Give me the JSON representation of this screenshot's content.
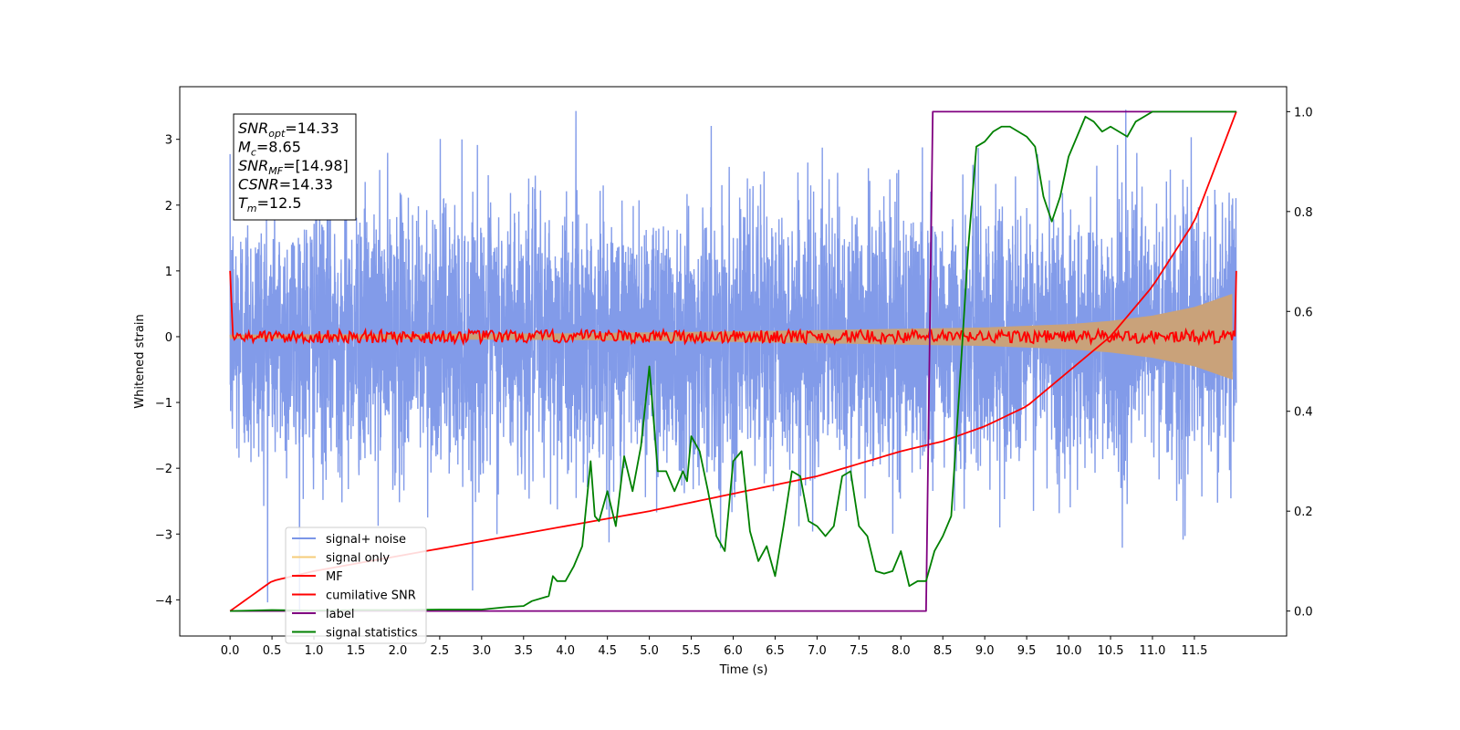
{
  "chart_data": {
    "type": "line",
    "xlabel": "Time (s)",
    "ylabel": "Whitened strain",
    "xlim": [
      -0.6,
      12.6
    ],
    "ylim": [
      -4.55,
      3.8
    ],
    "ylim_right": [
      -0.05,
      1.05
    ],
    "x_ticks": [
      "0.0",
      "0.5",
      "1.0",
      "1.5",
      "2.0",
      "2.5",
      "3.0",
      "3.5",
      "4.0",
      "4.5",
      "5.0",
      "5.5",
      "6.0",
      "6.5",
      "7.0",
      "7.5",
      "8.0",
      "8.5",
      "9.0",
      "9.5",
      "10.0",
      "10.5",
      "11.0",
      "11.5"
    ],
    "y_ticks": [
      "3",
      "2",
      "1",
      "0",
      "−1",
      "−2",
      "−3",
      "−4"
    ],
    "y_ticks_right": [
      "1.0",
      "0.8",
      "0.6",
      "0.4",
      "0.2",
      "0.0"
    ],
    "annotation_lines": [
      {
        "main": "SNR",
        "sub": "opt",
        "value": "=14.33"
      },
      {
        "main": "M",
        "sub": "c",
        "value": "=8.65"
      },
      {
        "main": "SNR",
        "sub": "MF",
        "value": "=[14.98]"
      },
      {
        "main": "CSNR",
        "sub": "",
        "value": "=14.33"
      },
      {
        "main": "T",
        "sub": "m",
        "value": "=12.5"
      }
    ],
    "legend": {
      "placement": "lower-left",
      "entries": [
        {
          "label": "signal+ noise",
          "color": "#7b96e8"
        },
        {
          "label": "signal only",
          "color": "#f5cc7a"
        },
        {
          "label": "MF",
          "color": "#ff0000"
        },
        {
          "label": "cumilative SNR",
          "color": "#ff0000"
        },
        {
          "label": "label",
          "color": "#800080"
        },
        {
          "label": "signal statistics",
          "color": "#008000"
        }
      ]
    },
    "series": [
      {
        "name": "signal+ noise",
        "axis": "left",
        "color": "#7b96e8",
        "x_range": [
          0,
          12.0
        ],
        "mean": 0,
        "std": 1.0,
        "min": -4.15,
        "max": 3.45
      },
      {
        "name": "signal only",
        "axis": "left",
        "color": "#c9a27a",
        "x": [
          0,
          4,
          6,
          8,
          9,
          10,
          10.5,
          11,
          11.5,
          11.95
        ],
        "amplitude": [
          0.03,
          0.05,
          0.08,
          0.12,
          0.14,
          0.19,
          0.24,
          0.32,
          0.45,
          0.65
        ]
      },
      {
        "name": "MF",
        "axis": "left",
        "color": "#ff0000",
        "x_range": [
          0,
          12.0
        ],
        "start": 1.0,
        "end": 1.0,
        "noise_amplitude": 0.1
      },
      {
        "name": "cumilative SNR",
        "axis": "right",
        "color": "#ff0000",
        "x": [
          0,
          0.5,
          1,
          2,
          3,
          4,
          5,
          6,
          7,
          8,
          8.5,
          9,
          9.5,
          10,
          10.5,
          11,
          11.5,
          12.0
        ],
        "y": [
          0.0,
          0.06,
          0.08,
          0.11,
          0.14,
          0.17,
          0.2,
          0.235,
          0.27,
          0.32,
          0.34,
          0.37,
          0.41,
          0.48,
          0.55,
          0.65,
          0.78,
          1.0
        ]
      },
      {
        "name": "label",
        "axis": "right",
        "color": "#800080",
        "x": [
          0,
          8.3,
          8.38,
          12.0
        ],
        "y": [
          0,
          0,
          1,
          1
        ]
      },
      {
        "name": "signal statistics",
        "axis": "right",
        "color": "#008000",
        "x": [
          0,
          0.5,
          1,
          1.5,
          2,
          2.5,
          3,
          3.3,
          3.5,
          3.6,
          3.8,
          3.85,
          3.9,
          4.0,
          4.1,
          4.2,
          4.3,
          4.35,
          4.4,
          4.5,
          4.6,
          4.7,
          4.8,
          4.9,
          5.0,
          5.1,
          5.2,
          5.3,
          5.4,
          5.45,
          5.5,
          5.6,
          5.7,
          5.8,
          5.9,
          6.0,
          6.1,
          6.2,
          6.3,
          6.4,
          6.5,
          6.6,
          6.7,
          6.8,
          6.9,
          7.0,
          7.1,
          7.2,
          7.3,
          7.4,
          7.5,
          7.6,
          7.7,
          7.8,
          7.9,
          8.0,
          8.1,
          8.2,
          8.3,
          8.4,
          8.5,
          8.6,
          8.7,
          8.8,
          8.9,
          9.0,
          9.1,
          9.2,
          9.3,
          9.4,
          9.5,
          9.6,
          9.7,
          9.8,
          9.9,
          10.0,
          10.1,
          10.2,
          10.3,
          10.4,
          10.5,
          10.6,
          10.7,
          10.8,
          10.9,
          11.0,
          11.1,
          11.2,
          11.5,
          11.8,
          12.0
        ],
        "y": [
          0.0,
          0.002,
          0.001,
          0.002,
          0.002,
          0.003,
          0.003,
          0.008,
          0.01,
          0.02,
          0.03,
          0.07,
          0.06,
          0.06,
          0.09,
          0.13,
          0.3,
          0.19,
          0.18,
          0.24,
          0.17,
          0.31,
          0.24,
          0.33,
          0.49,
          0.28,
          0.28,
          0.24,
          0.28,
          0.26,
          0.35,
          0.32,
          0.24,
          0.15,
          0.12,
          0.3,
          0.32,
          0.16,
          0.1,
          0.13,
          0.07,
          0.17,
          0.28,
          0.27,
          0.18,
          0.17,
          0.15,
          0.17,
          0.27,
          0.28,
          0.17,
          0.15,
          0.08,
          0.075,
          0.08,
          0.12,
          0.05,
          0.06,
          0.06,
          0.12,
          0.15,
          0.19,
          0.45,
          0.72,
          0.93,
          0.94,
          0.96,
          0.97,
          0.97,
          0.96,
          0.95,
          0.93,
          0.83,
          0.78,
          0.83,
          0.91,
          0.95,
          0.99,
          0.98,
          0.96,
          0.97,
          0.96,
          0.95,
          0.98,
          0.99,
          1.0,
          1.0,
          1.0,
          1.0,
          1.0,
          1.0
        ]
      }
    ]
  }
}
